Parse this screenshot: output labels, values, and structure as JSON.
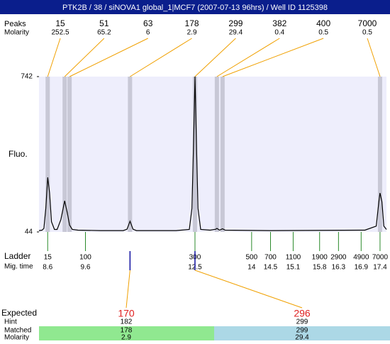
{
  "title": "PTK2B / 38 / siNOVA1 global_1|MCF7 (2007-07-13 96hrs) / Well ID 1125398",
  "chart_data": {
    "type": "electropherogram",
    "ylabel": "Fluo.",
    "ylim": [
      44,
      742
    ],
    "yticks": [
      44,
      742
    ],
    "xlim": [
      8.37,
      17.57
    ],
    "peaks": {
      "label": "Peaks",
      "molarity_label": "Molarity",
      "sizes": [
        15,
        51,
        63,
        178,
        299,
        382,
        400,
        7000
      ],
      "molarity": [
        252.5,
        65.2,
        6,
        2.9,
        29.4,
        0.4,
        0.5,
        0.5
      ],
      "migration_time": [
        8.6,
        9.05,
        9.18,
        10.78,
        12.5,
        13.08,
        13.23,
        17.4
      ]
    },
    "ladder": {
      "label": "Ladder",
      "time_label": "Mig. time",
      "sizes": [
        15,
        100,
        300,
        500,
        700,
        1100,
        1900,
        2900,
        4900,
        7000
      ],
      "migration_time": [
        8.6,
        9.6,
        12.5,
        14,
        14.5,
        15.1,
        15.8,
        16.3,
        16.9,
        17.4
      ]
    },
    "trace": {
      "x": [
        8.37,
        8.45,
        8.5,
        8.55,
        8.6,
        8.65,
        8.7,
        8.78,
        8.85,
        8.95,
        9.05,
        9.12,
        9.18,
        9.25,
        9.4,
        10.0,
        10.6,
        10.7,
        10.78,
        10.86,
        10.95,
        12.0,
        12.35,
        12.42,
        12.47,
        12.5,
        12.53,
        12.58,
        12.65,
        12.9,
        13.05,
        13.08,
        13.15,
        13.23,
        13.3,
        14.5,
        17.0,
        17.3,
        17.37,
        17.4,
        17.45,
        17.5,
        17.57
      ],
      "values": [
        50,
        52,
        60,
        150,
        289,
        220,
        90,
        55,
        55,
        100,
        184,
        130,
        75,
        55,
        52,
        50,
        50,
        56,
        92,
        56,
        50,
        50,
        55,
        150,
        500,
        742,
        500,
        150,
        55,
        52,
        56,
        60,
        52,
        58,
        52,
        50,
        52,
        70,
        180,
        219,
        180,
        70,
        55
      ]
    },
    "expected": {
      "label": "Expected",
      "values": [
        170,
        296
      ],
      "hint_label": "Hint",
      "hint": [
        182,
        299
      ],
      "matched_label": "Matched",
      "matched": [
        178,
        299
      ],
      "molarity_label": "Molarity",
      "molarity": [
        2.9,
        29.4
      ]
    }
  }
}
